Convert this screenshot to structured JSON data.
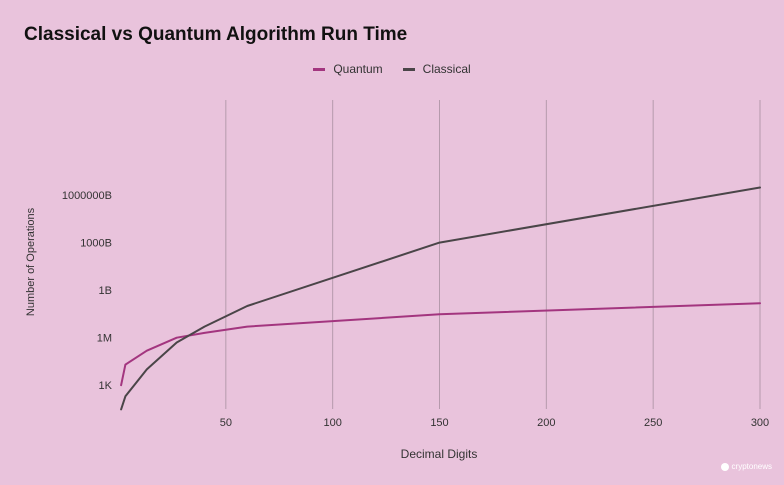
{
  "chart_data": {
    "type": "line",
    "title": "Classical vs Quantum Algorithm Run Time",
    "xlabel": "Decimal Digits",
    "ylabel": "Number of Operations",
    "xlim": [
      0,
      300
    ],
    "ylim_log10": [
      1.5,
      21
    ],
    "y_scale": "log",
    "x_ticks": [
      50,
      100,
      150,
      200,
      250,
      300
    ],
    "y_ticks": [
      {
        "value": 1000,
        "label": "1K"
      },
      {
        "value": 1000000,
        "label": "1M"
      },
      {
        "value": 1000000000,
        "label": "1B"
      },
      {
        "value": 1000000000000,
        "label": "1000B"
      },
      {
        "value": 1000000000000000,
        "label": "1000000B"
      }
    ],
    "grid": {
      "x": true,
      "y": false
    },
    "legend_position": "top-center",
    "series": [
      {
        "name": "Quantum",
        "color": "#a3357f",
        "x": [
          1,
          3,
          13,
          27,
          40,
          60,
          150,
          300
        ],
        "y": [
          1000,
          20000,
          150000,
          1000000,
          2000000,
          5000000,
          30000000,
          150000000
        ]
      },
      {
        "name": "Classical",
        "color": "#4a4548",
        "x": [
          1,
          3,
          13,
          27,
          40,
          60,
          150,
          300
        ],
        "y": [
          30,
          200,
          10000,
          500000,
          5000000,
          100000000,
          1000000000000,
          3000000000000000
        ]
      }
    ]
  },
  "watermark": {
    "text": "cryptonews"
  }
}
